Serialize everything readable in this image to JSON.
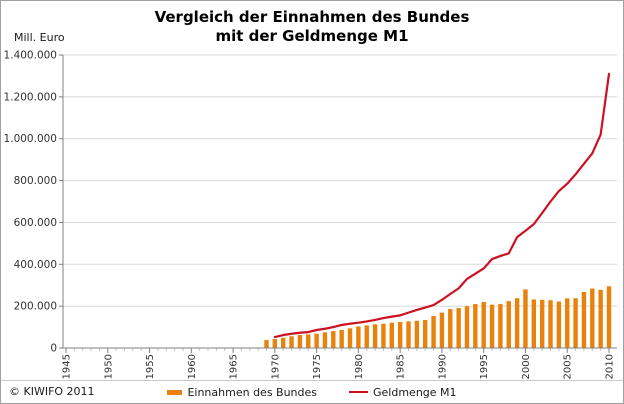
{
  "window": {
    "background": "#ffffff",
    "border_color": "#a0a0a0"
  },
  "header": {
    "title_line1": "Vergleich der Einnahmen des Bundes",
    "title_line2": "mit der Geldmenge M1",
    "y_axis_unit": "Mill. Euro"
  },
  "legend": {
    "items": [
      {
        "label": "Einnahmen des Bundes",
        "type": "bar",
        "color": "#E8820D"
      },
      {
        "label": "Geldmenge M1",
        "type": "line",
        "color": "#CC1122"
      }
    ]
  },
  "footer": {
    "copyright": "© KIWIFO 2011"
  },
  "colors": {
    "bar": "#E8820D",
    "line": "#CC1122",
    "gridline": "#D8D8D8",
    "axis": "#808080",
    "minor_tick": "#C0C0C0",
    "tick_text": "#333333",
    "divider": "#C8C8C8"
  },
  "chart_data": {
    "type": "combo",
    "title": "Vergleich der Einnahmen des Bundes mit der Geldmenge M1",
    "ylabel": "Mill. Euro",
    "xlabel": "",
    "grid": "horizontal",
    "legend_position": "bottom",
    "x_axis": {
      "min": 1945,
      "max": 2010,
      "label_interval": 5,
      "tick_labels": [
        "1945",
        "1950",
        "1955",
        "1960",
        "1965",
        "1970",
        "1975",
        "1980",
        "1985",
        "1990",
        "1995",
        "2000",
        "2005",
        "2010"
      ]
    },
    "y_axis": {
      "min": 0,
      "max": 1400000,
      "tick_interval": 200000,
      "tick_labels": [
        "0",
        "200.000",
        "400.000",
        "600.000",
        "800.000",
        "1.000.000",
        "1.200.000",
        "1.400.000"
      ]
    },
    "series": [
      {
        "name": "Einnahmen des Bundes",
        "type": "bar",
        "color": "#E8820D",
        "years": [
          1969,
          1970,
          1971,
          1972,
          1973,
          1974,
          1975,
          1976,
          1977,
          1978,
          1979,
          1980,
          1981,
          1982,
          1983,
          1984,
          1985,
          1986,
          1987,
          1988,
          1989,
          1990,
          1991,
          1992,
          1993,
          1994,
          1995,
          1996,
          1997,
          1998,
          1999,
          2000,
          2001,
          2002,
          2003,
          2004,
          2005,
          2006,
          2007,
          2008,
          2009,
          2010
        ],
        "values": [
          38000,
          43000,
          49000,
          56000,
          62000,
          65000,
          68000,
          75000,
          81000,
          86000,
          94000,
          103000,
          108000,
          113000,
          116000,
          121000,
          124000,
          127000,
          130000,
          134000,
          153000,
          169000,
          186000,
          191000,
          200000,
          210000,
          220000,
          207000,
          210000,
          224000,
          238000,
          280000,
          232000,
          230000,
          228000,
          222000,
          237000,
          238000,
          268000,
          284000,
          278000,
          295000
        ]
      },
      {
        "name": "Geldmenge M1",
        "type": "line",
        "color": "#CC1122",
        "years": [
          1970,
          1971,
          1972,
          1973,
          1974,
          1975,
          1976,
          1977,
          1978,
          1979,
          1980,
          1981,
          1982,
          1983,
          1984,
          1985,
          1986,
          1987,
          1988,
          1989,
          1990,
          1991,
          1992,
          1993,
          1994,
          1995,
          1996,
          1997,
          1998,
          1999,
          2000,
          2001,
          2002,
          2003,
          2004,
          2005,
          2006,
          2007,
          2008,
          2009,
          2010
        ],
        "values": [
          52000,
          62000,
          68000,
          73000,
          76000,
          86000,
          92000,
          100000,
          110000,
          116000,
          121000,
          127000,
          134000,
          143000,
          150000,
          156000,
          169000,
          182000,
          193000,
          205000,
          230000,
          258000,
          285000,
          330000,
          355000,
          380000,
          425000,
          440000,
          452000,
          530000,
          560000,
          592000,
          645000,
          700000,
          750000,
          785000,
          830000,
          880000,
          930000,
          1020000,
          1310000
        ]
      }
    ]
  }
}
